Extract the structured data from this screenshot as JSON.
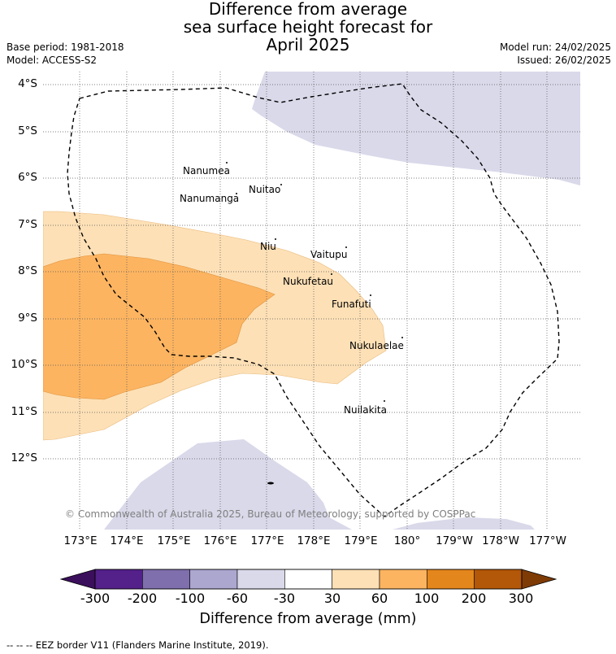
{
  "title": {
    "line1": "Difference from average",
    "line2": "sea surface height forecast for",
    "line3": "April 2025"
  },
  "meta": {
    "base_period": "Base period: 1981-2018",
    "model": "Model: ACCESS-S2",
    "model_run": "Model run: 24/02/2025",
    "issued": "Issued: 26/02/2025"
  },
  "lat_labels": [
    "4°S",
    "5°S",
    "6°S",
    "7°S",
    "8°S",
    "9°S",
    "10°S",
    "11°S",
    "12°S"
  ],
  "lon_labels": [
    "173°E",
    "174°E",
    "175°E",
    "176°E",
    "177°E",
    "178°E",
    "179°E",
    "180°",
    "179°W",
    "178°W",
    "177°W"
  ],
  "islands": [
    "Nanumea",
    "Nuitao",
    "Nanumanga",
    "Niu",
    "Vaitupu",
    "Nukufetau",
    "Funafuti",
    "Nukulaelae",
    "Nuilakita"
  ],
  "copyright": "© Commonwealth of Australia 2025, Bureau of Meteorology, supported by COSPPac",
  "colorbar": {
    "title": "Difference from average (mm)",
    "labels": [
      "-300",
      "-200",
      "-100",
      "-60",
      "-30",
      "30",
      "60",
      "100",
      "200",
      "300"
    ],
    "colors": [
      "#3b0f5c",
      "#54208a",
      "#7f6fad",
      "#aca7cf",
      "#d9d9ea",
      "#ffffff",
      "#fde0b6",
      "#fcb461",
      "#e3861c",
      "#b35708",
      "#7e3b06"
    ]
  },
  "footnote": "--  --  -- EEZ border V11 (Flanders Marine Institute, 2019)."
}
